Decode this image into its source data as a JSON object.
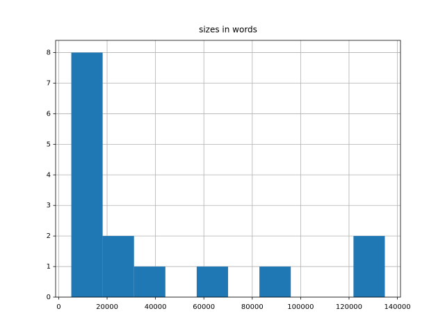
{
  "chart_data": {
    "type": "histogram",
    "title": "sizes in words",
    "bins": [
      5200,
      18160,
      31120,
      44080,
      57040,
      70000,
      82960,
      95920,
      108880,
      121840,
      134800
    ],
    "values": [
      8,
      2,
      1,
      0,
      1,
      0,
      1,
      0,
      0,
      2
    ],
    "color": "#1f77b4",
    "xlim": [
      -1280,
      141280
    ],
    "xticks": [
      0,
      20000,
      40000,
      60000,
      80000,
      100000,
      120000,
      140000
    ],
    "ylim": [
      0,
      8.4
    ],
    "yticks": [
      0,
      1,
      2,
      3,
      4,
      5,
      6,
      7,
      8
    ],
    "grid": true
  }
}
